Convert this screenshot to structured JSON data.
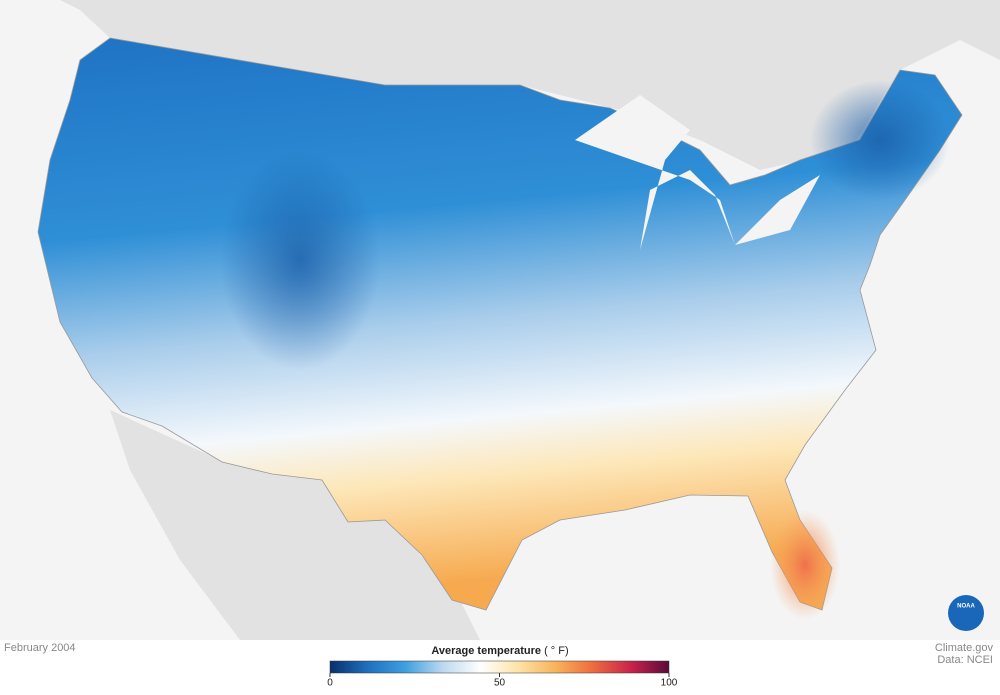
{
  "map": {
    "date_label": "February 2004",
    "legend": {
      "title": "Average temperature",
      "unit": "( ° F)",
      "range": [
        0,
        100
      ],
      "ticks": [
        0,
        50,
        100
      ],
      "colors": [
        "#08306b",
        "#1f6fbf",
        "#3ea0e0",
        "#bcd9ef",
        "#ffffff",
        "#fde3a7",
        "#f9b25a",
        "#ee6a3e",
        "#c8234b",
        "#5a0a3a"
      ]
    }
  },
  "credits": {
    "site": "Climate.gov",
    "source": "Data: NCEI"
  },
  "logo": "NOAA"
}
